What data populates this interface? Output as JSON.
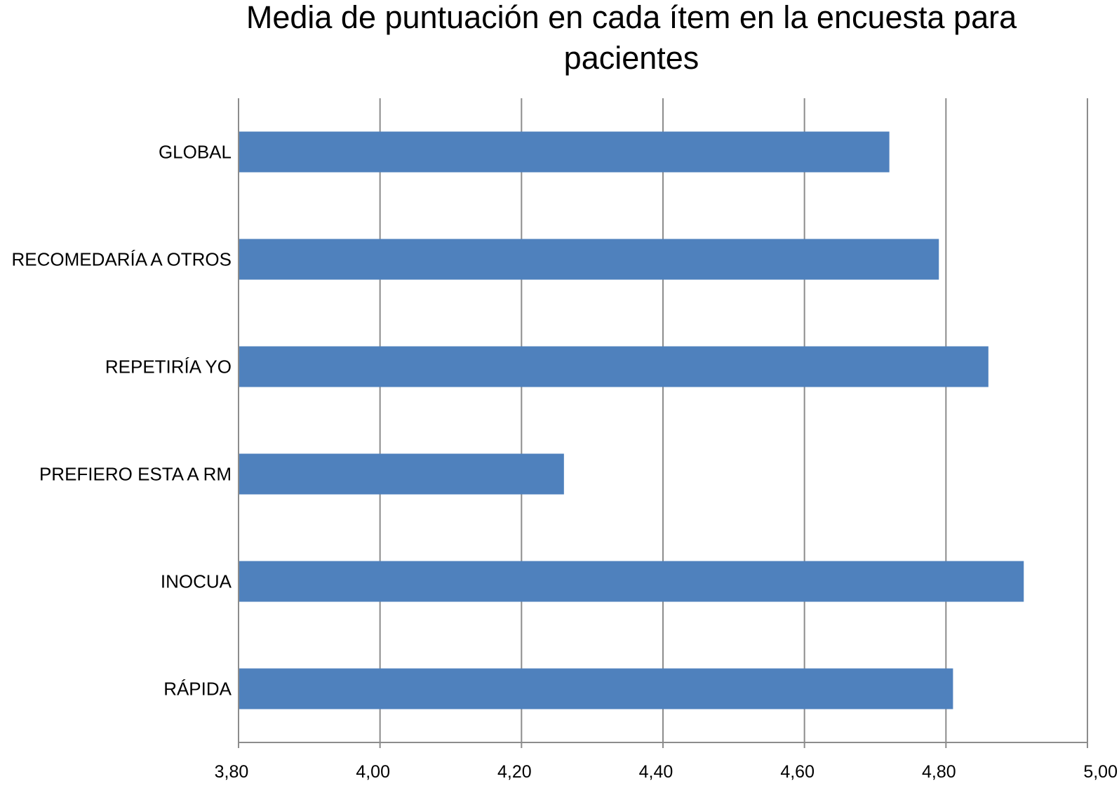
{
  "chart_data": {
    "type": "bar",
    "orientation": "horizontal",
    "title_lines": [
      "Media de puntuación en cada ítem en la encuesta para",
      "pacientes"
    ],
    "xlabel": "",
    "ylabel": "",
    "categories": [
      "GLOBAL",
      "RECOMEDARÍA A OTROS",
      "REPETIRÍA YO",
      "PREFIERO ESTA A RM",
      "INOCUA",
      "RÁPIDA"
    ],
    "values": [
      4.72,
      4.79,
      4.86,
      4.26,
      4.91,
      4.81
    ],
    "xlim": [
      3.8,
      5.0
    ],
    "x_ticks": [
      "3,80",
      "4,00",
      "4,20",
      "4,40",
      "4,60",
      "4,80",
      "5,00"
    ],
    "grid": "vertical",
    "legend": "none",
    "colors": {
      "bar": "#4f81bd",
      "grid": "#8c8c8c",
      "axis": "#8c8c8c"
    }
  }
}
